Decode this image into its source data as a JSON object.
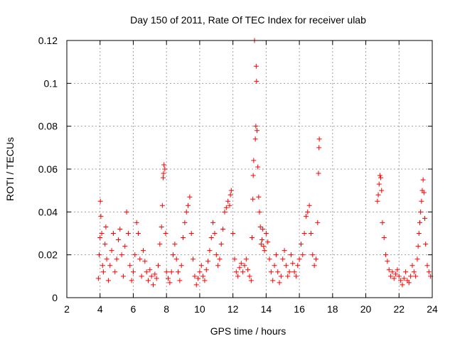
{
  "chart_data": {
    "type": "scatter",
    "title": "Day 150 of 2011, Rate Of TEC Index for receiver ulab",
    "xlabel": "GPS time / hours",
    "ylabel": "ROTI / TECUs",
    "xlim": [
      2,
      24
    ],
    "ylim": [
      0,
      0.12
    ],
    "x_ticks": [
      2,
      4,
      6,
      8,
      10,
      12,
      14,
      16,
      18,
      20,
      22,
      24
    ],
    "x_tick_labels": [
      "2",
      "4",
      "6",
      "8",
      "10",
      "12",
      "14",
      "16",
      "18",
      "20",
      "22",
      "24"
    ],
    "y_ticks": [
      0,
      0.02,
      0.04,
      0.06,
      0.08,
      0.1,
      0.12
    ],
    "y_tick_labels": [
      "0",
      "0.02",
      "0.04",
      "0.06",
      "0.08",
      "0.1",
      "0.12"
    ],
    "grid": true,
    "marker": "+",
    "marker_color": "#ff0000",
    "series": [
      {
        "name": "ROTI",
        "points": [
          [
            3.9,
            0.009
          ],
          [
            3.95,
            0.02
          ],
          [
            4.0,
            0.028
          ],
          [
            4.02,
            0.045
          ],
          [
            4.05,
            0.038
          ],
          [
            4.1,
            0.03
          ],
          [
            4.15,
            0.015
          ],
          [
            4.2,
            0.012
          ],
          [
            4.3,
            0.025
          ],
          [
            4.35,
            0.033
          ],
          [
            4.4,
            0.018
          ],
          [
            4.5,
            0.008
          ],
          [
            4.6,
            0.015
          ],
          [
            4.7,
            0.022
          ],
          [
            4.8,
            0.03
          ],
          [
            4.9,
            0.012
          ],
          [
            5.0,
            0.018
          ],
          [
            5.1,
            0.027
          ],
          [
            5.2,
            0.032
          ],
          [
            5.3,
            0.02
          ],
          [
            5.4,
            0.01
          ],
          [
            5.5,
            0.024
          ],
          [
            5.6,
            0.04
          ],
          [
            5.7,
            0.03
          ],
          [
            5.8,
            0.015
          ],
          [
            5.9,
            0.008
          ],
          [
            6.0,
            0.012
          ],
          [
            6.1,
            0.02
          ],
          [
            6.2,
            0.035
          ],
          [
            6.3,
            0.03
          ],
          [
            6.4,
            0.018
          ],
          [
            6.5,
            0.01
          ],
          [
            6.6,
            0.022
          ],
          [
            6.7,
            0.017
          ],
          [
            6.8,
            0.012
          ],
          [
            6.9,
            0.008
          ],
          [
            7.0,
            0.013
          ],
          [
            7.1,
            0.01
          ],
          [
            7.2,
            0.006
          ],
          [
            7.3,
            0.011
          ],
          [
            7.4,
            0.009
          ],
          [
            7.5,
            0.015
          ],
          [
            7.6,
            0.025
          ],
          [
            7.7,
            0.033
          ],
          [
            7.75,
            0.043
          ],
          [
            7.8,
            0.056
          ],
          [
            7.82,
            0.058
          ],
          [
            7.85,
            0.062
          ],
          [
            7.9,
            0.06
          ],
          [
            7.95,
            0.03
          ],
          [
            8.0,
            0.012
          ],
          [
            8.1,
            0.009
          ],
          [
            8.2,
            0.007
          ],
          [
            8.3,
            0.012
          ],
          [
            8.4,
            0.02
          ],
          [
            8.5,
            0.025
          ],
          [
            8.6,
            0.018
          ],
          [
            8.7,
            0.012
          ],
          [
            8.8,
            0.008
          ],
          [
            8.9,
            0.015
          ],
          [
            9.0,
            0.028
          ],
          [
            9.1,
            0.035
          ],
          [
            9.2,
            0.04
          ],
          [
            9.3,
            0.043
          ],
          [
            9.4,
            0.047
          ],
          [
            9.5,
            0.03
          ],
          [
            9.6,
            0.018
          ],
          [
            9.7,
            0.01
          ],
          [
            9.8,
            0.006
          ],
          [
            9.9,
            0.009
          ],
          [
            10.0,
            0.012
          ],
          [
            10.1,
            0.015
          ],
          [
            10.2,
            0.01
          ],
          [
            10.3,
            0.008
          ],
          [
            10.4,
            0.013
          ],
          [
            10.5,
            0.017
          ],
          [
            10.6,
            0.022
          ],
          [
            10.7,
            0.028
          ],
          [
            10.8,
            0.035
          ],
          [
            10.9,
            0.03
          ],
          [
            11.0,
            0.02
          ],
          [
            11.1,
            0.015
          ],
          [
            11.2,
            0.018
          ],
          [
            11.3,
            0.025
          ],
          [
            11.4,
            0.032
          ],
          [
            11.5,
            0.04
          ],
          [
            11.6,
            0.042
          ],
          [
            11.7,
            0.045
          ],
          [
            11.8,
            0.043
          ],
          [
            11.85,
            0.048
          ],
          [
            11.9,
            0.05
          ],
          [
            12.0,
            0.03
          ],
          [
            12.1,
            0.018
          ],
          [
            12.2,
            0.012
          ],
          [
            12.3,
            0.01
          ],
          [
            12.4,
            0.014
          ],
          [
            12.5,
            0.016
          ],
          [
            12.6,
            0.012
          ],
          [
            12.7,
            0.015
          ],
          [
            12.8,
            0.018
          ],
          [
            12.9,
            0.013
          ],
          [
            13.0,
            0.01
          ],
          [
            13.1,
            0.008
          ],
          [
            13.15,
            0.028
          ],
          [
            13.2,
            0.046
          ],
          [
            13.22,
            0.057
          ],
          [
            13.25,
            0.064
          ],
          [
            13.3,
            0.12
          ],
          [
            13.35,
            0.074
          ],
          [
            13.38,
            0.08
          ],
          [
            13.4,
            0.108
          ],
          [
            13.42,
            0.101
          ],
          [
            13.45,
            0.078
          ],
          [
            13.5,
            0.061
          ],
          [
            13.55,
            0.047
          ],
          [
            13.6,
            0.04
          ],
          [
            13.65,
            0.033
          ],
          [
            13.7,
            0.025
          ],
          [
            13.75,
            0.027
          ],
          [
            13.8,
            0.032
          ],
          [
            13.85,
            0.024
          ],
          [
            13.9,
            0.022
          ],
          [
            14.0,
            0.03
          ],
          [
            14.1,
            0.026
          ],
          [
            14.2,
            0.018
          ],
          [
            14.3,
            0.012
          ],
          [
            14.4,
            0.008
          ],
          [
            14.5,
            0.015
          ],
          [
            14.6,
            0.02
          ],
          [
            14.7,
            0.012
          ],
          [
            14.8,
            0.007
          ],
          [
            14.9,
            0.01
          ],
          [
            15.0,
            0.018
          ],
          [
            15.1,
            0.022
          ],
          [
            15.2,
            0.015
          ],
          [
            15.3,
            0.01
          ],
          [
            15.4,
            0.012
          ],
          [
            15.5,
            0.02
          ],
          [
            15.6,
            0.016
          ],
          [
            15.7,
            0.012
          ],
          [
            15.8,
            0.01
          ],
          [
            15.9,
            0.015
          ],
          [
            16.0,
            0.018
          ],
          [
            16.1,
            0.025
          ],
          [
            16.2,
            0.02
          ],
          [
            16.3,
            0.03
          ],
          [
            16.4,
            0.038
          ],
          [
            16.5,
            0.04
          ],
          [
            16.6,
            0.043
          ],
          [
            16.7,
            0.03
          ],
          [
            16.8,
            0.02
          ],
          [
            16.9,
            0.015
          ],
          [
            17.0,
            0.018
          ],
          [
            17.1,
            0.035
          ],
          [
            17.15,
            0.058
          ],
          [
            17.18,
            0.07
          ],
          [
            17.2,
            0.074
          ],
          [
            20.7,
            0.045
          ],
          [
            20.75,
            0.048
          ],
          [
            20.8,
            0.053
          ],
          [
            20.85,
            0.057
          ],
          [
            20.9,
            0.056
          ],
          [
            20.95,
            0.05
          ],
          [
            21.0,
            0.035
          ],
          [
            21.1,
            0.028
          ],
          [
            21.2,
            0.02
          ],
          [
            21.3,
            0.017
          ],
          [
            21.4,
            0.013
          ],
          [
            21.5,
            0.01
          ],
          [
            21.6,
            0.012
          ],
          [
            21.7,
            0.009
          ],
          [
            21.8,
            0.011
          ],
          [
            21.9,
            0.013
          ],
          [
            22.0,
            0.01
          ],
          [
            22.1,
            0.008
          ],
          [
            22.2,
            0.006
          ],
          [
            22.3,
            0.009
          ],
          [
            22.4,
            0.012
          ],
          [
            22.5,
            0.008
          ],
          [
            22.6,
            0.007
          ],
          [
            22.7,
            0.01
          ],
          [
            22.8,
            0.015
          ],
          [
            22.9,
            0.012
          ],
          [
            23.0,
            0.01
          ],
          [
            23.1,
            0.018
          ],
          [
            23.15,
            0.024
          ],
          [
            23.2,
            0.03
          ],
          [
            23.25,
            0.035
          ],
          [
            23.3,
            0.04
          ],
          [
            23.35,
            0.045
          ],
          [
            23.4,
            0.05
          ],
          [
            23.45,
            0.055
          ],
          [
            23.5,
            0.049
          ],
          [
            23.55,
            0.037
          ],
          [
            23.6,
            0.025
          ],
          [
            23.7,
            0.015
          ],
          [
            23.8,
            0.012
          ],
          [
            23.9,
            0.01
          ]
        ]
      }
    ]
  }
}
